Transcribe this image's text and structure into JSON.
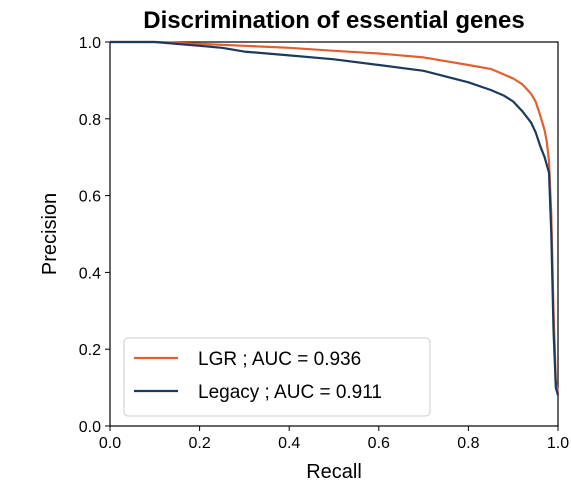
{
  "chart_data": {
    "type": "line",
    "title": "Discrimination of essential genes",
    "xlabel": "Recall",
    "ylabel": "Precision",
    "xlim": [
      0.0,
      1.0
    ],
    "ylim": [
      0.0,
      1.0
    ],
    "xticks": [
      "0.0",
      "0.2",
      "0.4",
      "0.6",
      "0.8",
      "1.0"
    ],
    "yticks": [
      "0.0",
      "0.2",
      "0.4",
      "0.6",
      "0.8",
      "1.0"
    ],
    "grid": false,
    "legend": "lower-left",
    "series": [
      {
        "name": "LGR ; AUC = 0.936",
        "color": "#e06030",
        "x": [
          0.0,
          0.1,
          0.15,
          0.2,
          0.3,
          0.4,
          0.5,
          0.6,
          0.7,
          0.75,
          0.8,
          0.85,
          0.88,
          0.9,
          0.92,
          0.94,
          0.95,
          0.96,
          0.97,
          0.975,
          0.98,
          0.985,
          0.99,
          0.995,
          1.0
        ],
        "y": [
          1.0,
          1.0,
          0.998,
          0.995,
          0.99,
          0.985,
          0.977,
          0.97,
          0.96,
          0.95,
          0.94,
          0.93,
          0.915,
          0.905,
          0.89,
          0.865,
          0.845,
          0.81,
          0.77,
          0.74,
          0.69,
          0.55,
          0.3,
          0.12,
          0.085
        ]
      },
      {
        "name": "Legacy ; AUC = 0.911",
        "color": "#1c3a5e",
        "x": [
          0.0,
          0.1,
          0.15,
          0.2,
          0.25,
          0.3,
          0.4,
          0.5,
          0.6,
          0.7,
          0.75,
          0.8,
          0.85,
          0.88,
          0.9,
          0.92,
          0.94,
          0.95,
          0.96,
          0.97,
          0.98,
          0.985,
          0.99,
          0.995,
          1.0
        ],
        "y": [
          1.0,
          1.0,
          0.995,
          0.99,
          0.985,
          0.975,
          0.965,
          0.955,
          0.94,
          0.925,
          0.91,
          0.895,
          0.875,
          0.86,
          0.845,
          0.82,
          0.79,
          0.765,
          0.73,
          0.7,
          0.66,
          0.5,
          0.25,
          0.1,
          0.08
        ]
      }
    ]
  }
}
